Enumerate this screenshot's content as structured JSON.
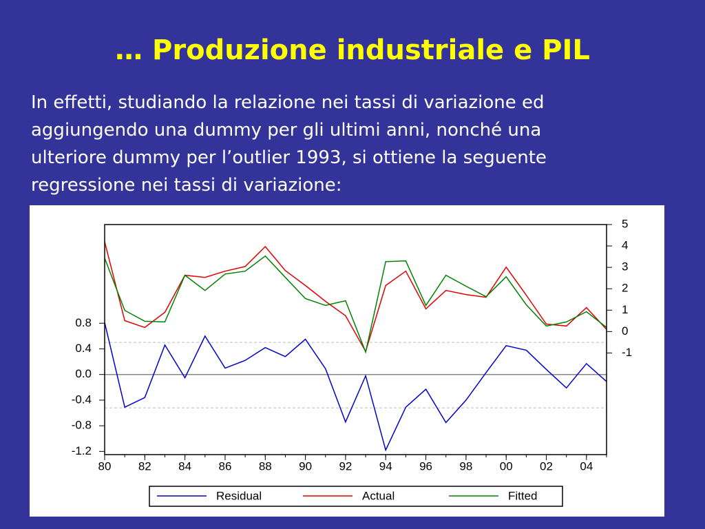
{
  "slide": {
    "title": "… Produzione industriale e PIL",
    "body_lines": [
      "In effetti, studiando la relazione nei tassi di variazione ed",
      "aggiungendo una dummy per gli ultimi anni, nonché una",
      "ulteriore dummy per l’outlier 1993, si ottiene la seguente",
      "regressione nei tassi di variazione:"
    ]
  },
  "chart_data": {
    "type": "line",
    "x": [
      1980,
      1981,
      1982,
      1983,
      1984,
      1985,
      1986,
      1987,
      1988,
      1989,
      1990,
      1991,
      1992,
      1993,
      1994,
      1995,
      1996,
      1997,
      1998,
      1999,
      2000,
      2001,
      2002,
      2003,
      2004,
      2005
    ],
    "series": [
      {
        "name": "Residual",
        "color": "#0000cc",
        "axis": "y",
        "values": [
          0.81,
          -0.51,
          -0.36,
          0.46,
          -0.05,
          0.6,
          0.1,
          0.22,
          0.42,
          0.28,
          0.55,
          0.09,
          -0.74,
          -0.02,
          -1.18,
          -0.51,
          -0.23,
          -0.75,
          -0.4,
          0.03,
          0.45,
          0.38,
          0.08,
          -0.21,
          0.17,
          -0.11
        ]
      },
      {
        "name": "Actual",
        "color": "#e00000",
        "axis": "y2",
        "values": [
          4.2,
          0.51,
          0.19,
          0.9,
          2.63,
          2.53,
          2.82,
          3.04,
          3.97,
          2.85,
          2.15,
          1.41,
          0.74,
          -0.93,
          2.15,
          2.82,
          1.06,
          1.92,
          1.73,
          1.6,
          3.01,
          1.7,
          0.35,
          0.26,
          1.12,
          0.1
        ]
      },
      {
        "name": "Fitted",
        "color": "#008000",
        "axis": "y2",
        "values": [
          3.43,
          0.99,
          0.48,
          0.45,
          2.63,
          1.92,
          2.69,
          2.82,
          3.53,
          2.53,
          1.54,
          1.22,
          1.44,
          -0.96,
          3.27,
          3.3,
          1.22,
          2.63,
          2.12,
          1.63,
          2.56,
          1.25,
          0.26,
          0.45,
          0.93,
          0.19
        ]
      }
    ],
    "xlim": [
      1980,
      2005
    ],
    "xticks": [
      {
        "value": 1980,
        "label": "80"
      },
      {
        "value": 1982,
        "label": "82"
      },
      {
        "value": 1984,
        "label": "84"
      },
      {
        "value": 1986,
        "label": "86"
      },
      {
        "value": 1988,
        "label": "88"
      },
      {
        "value": 1990,
        "label": "90"
      },
      {
        "value": 1992,
        "label": "92"
      },
      {
        "value": 1994,
        "label": "94"
      },
      {
        "value": 1996,
        "label": "96"
      },
      {
        "value": 1998,
        "label": "98"
      },
      {
        "value": 2000,
        "label": "00"
      },
      {
        "value": 2002,
        "label": "02"
      },
      {
        "value": 2004,
        "label": "04"
      }
    ],
    "ylim": [
      -1.25,
      2.34
    ],
    "yticks": [
      -1.2,
      -0.8,
      -0.4,
      {
        "value": 0,
        "label": "0.0"
      },
      0.4,
      0.8
    ],
    "y2lim": [
      -5.75,
      5
    ],
    "y2ticks": [
      -1,
      0,
      1,
      2,
      3,
      4,
      5
    ],
    "zero_line": 0,
    "dashed_lines": [
      0.5,
      -0.52
    ],
    "legend": "bottom"
  }
}
